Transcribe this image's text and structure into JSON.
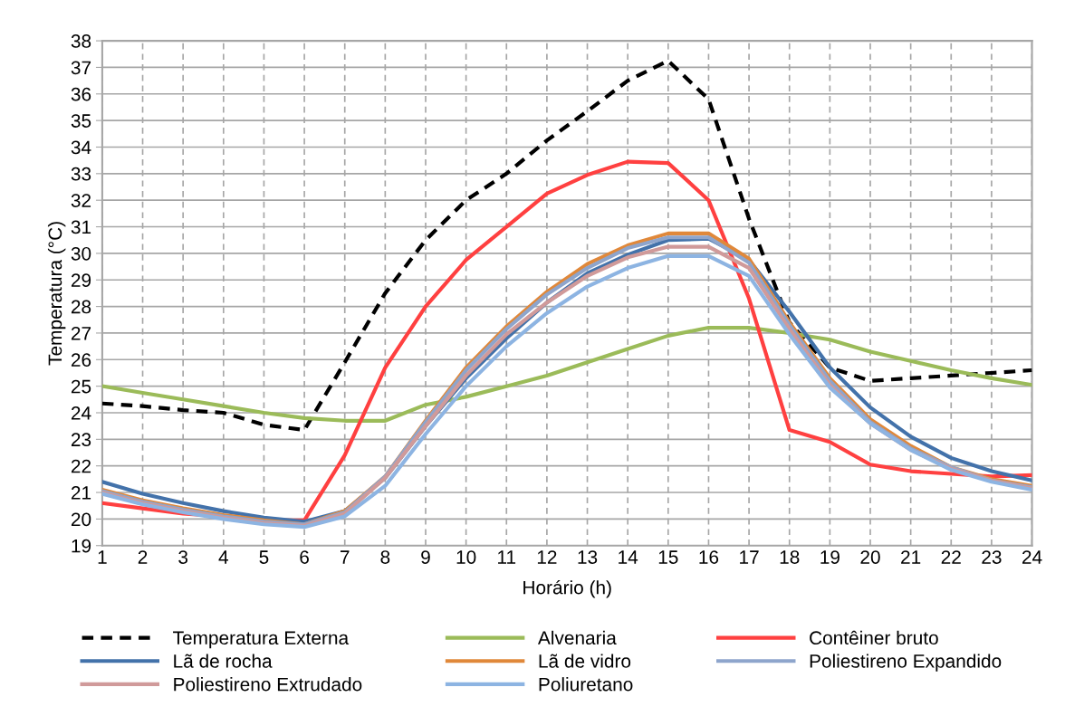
{
  "chart_data": {
    "type": "line",
    "xlabel": "Horário (h)",
    "ylabel": "Temperatura (°C)",
    "x": [
      1,
      2,
      3,
      4,
      5,
      6,
      7,
      8,
      9,
      10,
      11,
      12,
      13,
      14,
      15,
      16,
      17,
      18,
      19,
      20,
      21,
      22,
      23,
      24
    ],
    "xlim": [
      1,
      24
    ],
    "xticks": [
      1,
      2,
      3,
      4,
      5,
      6,
      7,
      8,
      9,
      10,
      11,
      12,
      13,
      14,
      15,
      16,
      17,
      18,
      19,
      20,
      21,
      22,
      23,
      24
    ],
    "ylim": [
      19,
      38
    ],
    "yticks": [
      19,
      20,
      21,
      22,
      23,
      24,
      25,
      26,
      27,
      28,
      29,
      30,
      31,
      32,
      33,
      34,
      35,
      36,
      37,
      38
    ],
    "grid": true,
    "legend": "bottom",
    "marker": "none",
    "series": [
      {
        "name": "Temperatura Externa",
        "color": "#000000",
        "line_style": "dashed",
        "values": [
          24.35,
          24.25,
          24.1,
          24.0,
          23.55,
          23.35,
          25.9,
          28.5,
          30.5,
          32.0,
          33.0,
          34.25,
          35.35,
          36.5,
          37.25,
          35.8,
          31.3,
          27.4,
          25.7,
          25.2,
          25.3,
          25.4,
          25.5,
          25.6
        ]
      },
      {
        "name": "Alvenaria",
        "color": "#9bbb59",
        "values": [
          25.0,
          24.75,
          24.5,
          24.25,
          24.0,
          23.8,
          23.7,
          23.7,
          24.3,
          24.6,
          25.0,
          25.4,
          25.9,
          26.4,
          26.9,
          27.2,
          27.2,
          27.0,
          26.75,
          26.3,
          25.95,
          25.6,
          25.3,
          25.05
        ]
      },
      {
        "name": "Contêiner bruto",
        "color": "#ff4040",
        "values": [
          20.6,
          20.4,
          20.2,
          20.1,
          19.95,
          19.95,
          22.4,
          25.7,
          28.0,
          29.75,
          31.0,
          32.25,
          32.95,
          33.45,
          33.4,
          32.0,
          28.3,
          23.35,
          22.9,
          22.05,
          21.8,
          21.7,
          21.6,
          21.65
        ]
      },
      {
        "name": "Lã de rocha",
        "color": "#4372aa",
        "values": [
          21.4,
          20.95,
          20.6,
          20.3,
          20.05,
          19.9,
          20.3,
          21.55,
          23.5,
          25.3,
          26.8,
          28.15,
          29.25,
          29.95,
          30.5,
          30.55,
          29.75,
          27.8,
          25.7,
          24.2,
          23.1,
          22.3,
          21.8,
          21.45
        ]
      },
      {
        "name": "Lã de vidro",
        "color": "#e0883a",
        "values": [
          21.1,
          20.7,
          20.4,
          20.15,
          19.95,
          19.8,
          20.3,
          21.6,
          23.7,
          25.7,
          27.25,
          28.55,
          29.6,
          30.3,
          30.75,
          30.75,
          29.8,
          27.4,
          25.3,
          23.75,
          22.75,
          21.95,
          21.5,
          21.25
        ]
      },
      {
        "name": "Poliestireno Expandido",
        "color": "#8ea5cc",
        "values": [
          21.05,
          20.65,
          20.35,
          20.1,
          19.9,
          19.8,
          20.25,
          21.6,
          23.65,
          25.6,
          27.15,
          28.45,
          29.45,
          30.2,
          30.6,
          30.6,
          29.65,
          27.3,
          25.2,
          23.65,
          22.65,
          21.95,
          21.45,
          21.2
        ]
      },
      {
        "name": "Poliestireno Extrudado",
        "color": "#d09a9a",
        "values": [
          21.0,
          20.6,
          20.3,
          20.05,
          19.85,
          19.75,
          20.2,
          21.55,
          23.5,
          25.4,
          26.95,
          28.15,
          29.15,
          29.85,
          30.25,
          30.25,
          29.45,
          27.15,
          25.05,
          23.6,
          22.6,
          21.9,
          21.45,
          21.15
        ]
      },
      {
        "name": "Poliuretano",
        "color": "#8db4e2",
        "values": [
          20.95,
          20.55,
          20.25,
          20.0,
          19.8,
          19.7,
          20.1,
          21.25,
          23.2,
          25.0,
          26.5,
          27.75,
          28.75,
          29.45,
          29.9,
          29.9,
          29.15,
          26.95,
          24.95,
          23.6,
          22.6,
          21.85,
          21.4,
          21.1
        ]
      }
    ]
  }
}
